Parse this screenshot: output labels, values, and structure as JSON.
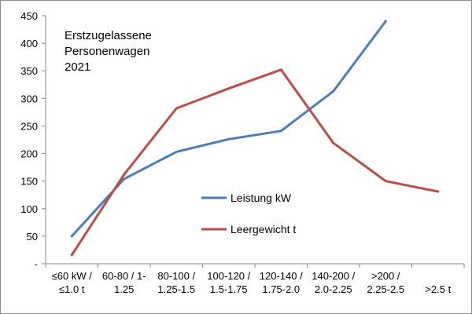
{
  "chart_data": {
    "type": "line",
    "title": "",
    "annotation": [
      "Erstzugelassene",
      "Personenwagen",
      "2021"
    ],
    "xlabel": "",
    "ylabel": "",
    "ylim": [
      0,
      450
    ],
    "y_ticks": [
      0,
      50,
      100,
      150,
      200,
      250,
      300,
      350,
      400,
      450
    ],
    "y_tick_labels": [
      "-",
      "50",
      "100",
      "150",
      "200",
      "250",
      "300",
      "350",
      "400",
      "450"
    ],
    "grid": false,
    "legend_position": "center-right",
    "categories": [
      [
        "≤60 kW /",
        "≤1.0 t"
      ],
      [
        "60-80 / 1-",
        "1.25"
      ],
      [
        "80-100 /",
        "1.25-1.5"
      ],
      [
        "100-120 /",
        "1.5-1.75"
      ],
      [
        "120-140 /",
        "1.75-2.0"
      ],
      [
        "140-200 /",
        "2.0-2.25"
      ],
      [
        ">200 /",
        "2.25-2.5"
      ],
      [
        "",
        ">2.5 t"
      ]
    ],
    "series": [
      {
        "name": "Leistung kW",
        "color": "#4a7ebb",
        "values": [
          50,
          154,
          203,
          226,
          241,
          313,
          440,
          null
        ]
      },
      {
        "name": "Leergewicht t",
        "color": "#be4b48",
        "values": [
          16,
          162,
          282,
          318,
          352,
          219,
          150,
          131
        ]
      }
    ]
  }
}
